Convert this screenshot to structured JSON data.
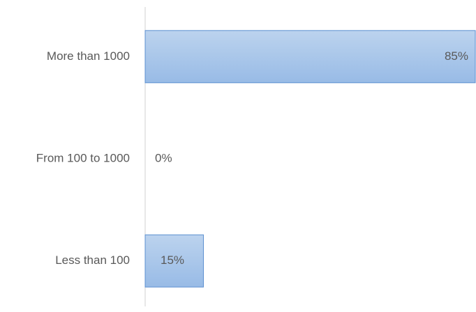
{
  "chart_data": {
    "type": "bar",
    "orientation": "horizontal",
    "categories": [
      "More than 1000",
      "From 100 to 1000",
      "Less than 100"
    ],
    "values": [
      85,
      0,
      15
    ],
    "value_labels": [
      "85%",
      "0%",
      "15%"
    ],
    "color": "#a9c6ea"
  }
}
